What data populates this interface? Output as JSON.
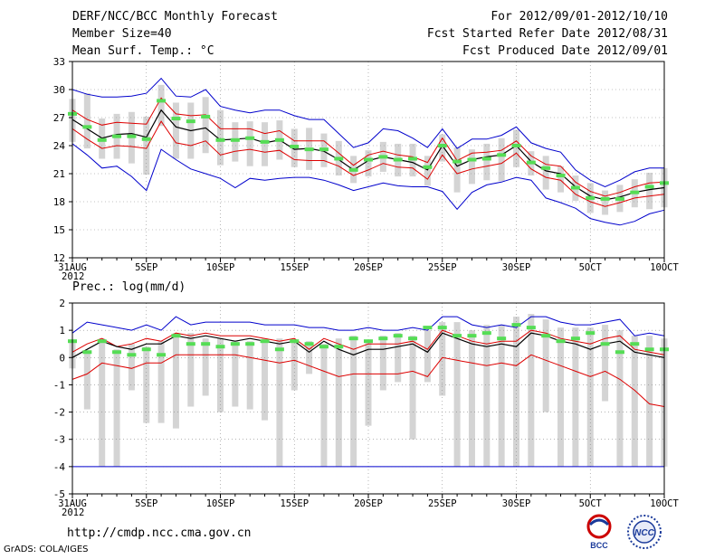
{
  "header": {
    "title": "DERF/NCC/BCC Monthly Forecast",
    "member_size": "Member Size=40",
    "variable": "Mean Surf. Temp.: °C",
    "forecast_period": "For 2012/09/01-2012/10/10",
    "started_refer": "Fcst Started Refer Date 2012/08/31",
    "produced": "Fcst Produced Date 2012/09/01"
  },
  "footer": {
    "url": "http://cmdp.ncc.cma.gov.cn",
    "grads_credit": "GrADS: COLA/IGES",
    "logo_left_text": "BCC",
    "logo_right_text": "NCC"
  },
  "colors": {
    "envelope": "#0000cc",
    "spread": "#dd0000",
    "mean": "#000000",
    "median_marker": "#55dd55",
    "box": "#d4d4d4",
    "grid": "#888888"
  },
  "chart_data": [
    {
      "type": "line",
      "title": "Mean Surf. Temp.: °C",
      "x_tick_labels": [
        "31AUG",
        "5SEP",
        "10SEP",
        "15SEP",
        "20SEP",
        "25SEP",
        "30SEP",
        "5OCT",
        "10OCT"
      ],
      "x_year_label": "2012",
      "x_day_range": [
        0,
        40
      ],
      "ylim": [
        12,
        33
      ],
      "y_ticks": [
        12,
        15,
        18,
        21,
        24,
        27,
        30,
        33
      ],
      "series": [
        {
          "name": "max",
          "values": [
            30.0,
            29.5,
            29.2,
            29.2,
            29.3,
            29.6,
            31.2,
            29.3,
            29.2,
            30.0,
            28.2,
            27.8,
            27.5,
            27.8,
            27.8,
            27.2,
            26.8,
            26.8,
            25.3,
            23.8,
            24.3,
            25.8,
            25.6,
            24.8,
            23.8,
            25.8,
            23.7,
            24.7,
            24.7,
            25.1,
            26.0,
            24.3,
            23.7,
            23.3,
            21.4,
            20.3,
            19.6,
            20.3,
            21.2,
            21.6,
            21.6
          ]
        },
        {
          "name": "upper",
          "values": [
            27.8,
            26.8,
            26.2,
            26.5,
            26.4,
            26.3,
            29.1,
            27.4,
            27.2,
            27.3,
            25.8,
            25.8,
            25.8,
            25.3,
            25.6,
            24.5,
            24.5,
            24.5,
            23.2,
            21.9,
            23.0,
            23.4,
            23.0,
            22.8,
            22.2,
            24.8,
            22.4,
            23.2,
            23.3,
            23.5,
            24.5,
            22.9,
            22.0,
            21.8,
            20.1,
            19.1,
            18.6,
            19.0,
            19.6,
            20.0,
            20.1
          ]
        },
        {
          "name": "mean",
          "values": [
            26.8,
            25.8,
            24.8,
            25.2,
            25.3,
            24.9,
            27.8,
            26.0,
            25.6,
            25.9,
            24.6,
            24.7,
            24.8,
            24.3,
            24.6,
            23.6,
            23.7,
            23.4,
            22.5,
            21.4,
            22.4,
            22.8,
            22.5,
            22.2,
            21.4,
            24.0,
            21.8,
            22.5,
            22.8,
            23.0,
            24.0,
            22.3,
            21.3,
            21.0,
            19.6,
            18.6,
            18.2,
            18.5,
            19.0,
            19.3,
            19.5
          ]
        },
        {
          "name": "lower",
          "values": [
            25.8,
            24.7,
            23.7,
            24.0,
            23.9,
            23.7,
            26.6,
            24.3,
            24.0,
            24.5,
            23.0,
            23.4,
            23.6,
            23.3,
            23.5,
            22.5,
            22.4,
            22.4,
            21.8,
            20.8,
            21.4,
            22.1,
            21.7,
            21.6,
            20.4,
            23.0,
            21.0,
            21.5,
            21.8,
            22.1,
            23.2,
            21.5,
            20.6,
            20.3,
            18.8,
            18.0,
            17.5,
            17.9,
            18.4,
            18.6,
            18.8
          ]
        },
        {
          "name": "min",
          "values": [
            24.2,
            23.0,
            21.6,
            21.8,
            20.7,
            19.2,
            23.6,
            22.5,
            21.5,
            21.0,
            20.5,
            19.5,
            20.5,
            20.3,
            20.5,
            20.6,
            20.6,
            20.3,
            19.8,
            19.2,
            19.6,
            20.0,
            19.7,
            19.6,
            19.6,
            19.1,
            17.2,
            19.0,
            19.8,
            20.1,
            20.6,
            20.3,
            18.4,
            17.9,
            17.3,
            16.2,
            15.8,
            15.5,
            15.9,
            16.7,
            17.1
          ]
        },
        {
          "name": "median",
          "values": [
            27.4,
            26.0,
            24.6,
            25.0,
            25.0,
            24.7,
            28.8,
            26.9,
            26.6,
            27.1,
            24.6,
            24.6,
            24.8,
            24.4,
            24.6,
            23.9,
            23.6,
            23.6,
            22.6,
            21.4,
            22.5,
            22.8,
            22.5,
            22.6,
            21.7,
            24.0,
            22.3,
            22.5,
            22.6,
            23.0,
            24.0,
            22.2,
            21.6,
            20.8,
            19.5,
            18.4,
            18.3,
            18.3,
            19.0,
            19.6,
            20.0
          ]
        }
      ],
      "boxes": {
        "high": [
          29.0,
          29.6,
          26.9,
          27.4,
          27.6,
          27.1,
          30.5,
          28.6,
          28.6,
          29.2,
          27.8,
          26.5,
          26.6,
          26.5,
          26.7,
          25.8,
          25.9,
          25.3,
          24.5,
          22.9,
          23.5,
          24.4,
          24.2,
          24.2,
          22.9,
          25.2,
          23.8,
          23.6,
          24.2,
          24.8,
          25.7,
          23.4,
          22.9,
          21.8,
          20.8,
          20.0,
          19.2,
          19.8,
          20.4,
          21.1,
          21.6
        ],
        "low": [
          24.4,
          23.7,
          22.6,
          22.6,
          22.1,
          20.9,
          26.1,
          22.6,
          22.6,
          23.2,
          21.9,
          22.3,
          21.8,
          21.8,
          22.5,
          21.7,
          21.4,
          21.7,
          20.8,
          20.0,
          20.7,
          21.2,
          20.7,
          20.7,
          19.7,
          22.3,
          19.0,
          19.9,
          20.3,
          20.2,
          21.7,
          20.8,
          19.3,
          19.0,
          18.1,
          16.8,
          16.6,
          16.9,
          17.4,
          17.2,
          17.4
        ]
      }
    },
    {
      "type": "line",
      "title": "Prec.: log(mm/d)",
      "x_tick_labels": [
        "31AUG",
        "5SEP",
        "10SEP",
        "15SEP",
        "20SEP",
        "25SEP",
        "30SEP",
        "5OCT",
        "10OCT"
      ],
      "x_year_label": "2012",
      "x_day_range": [
        0,
        40
      ],
      "ylim": [
        -5,
        2
      ],
      "y_ticks": [
        -5,
        -4,
        -3,
        -2,
        -1,
        0,
        1,
        2
      ],
      "series": [
        {
          "name": "max",
          "values": [
            0.9,
            1.3,
            1.2,
            1.1,
            1.0,
            1.2,
            1.0,
            1.5,
            1.2,
            1.3,
            1.3,
            1.3,
            1.3,
            1.2,
            1.2,
            1.2,
            1.1,
            1.1,
            1.0,
            1.0,
            1.1,
            1.0,
            1.0,
            1.1,
            1.0,
            1.5,
            1.5,
            1.2,
            1.1,
            1.2,
            1.1,
            1.5,
            1.5,
            1.3,
            1.2,
            1.2,
            1.3,
            1.4,
            0.8,
            0.9,
            0.8
          ]
        },
        {
          "name": "upper",
          "values": [
            0.2,
            0.5,
            0.7,
            0.4,
            0.5,
            0.7,
            0.6,
            0.9,
            0.8,
            0.9,
            0.8,
            0.8,
            0.8,
            0.7,
            0.6,
            0.7,
            0.3,
            0.7,
            0.5,
            0.3,
            0.5,
            0.5,
            0.5,
            0.6,
            0.3,
            1.0,
            0.8,
            0.6,
            0.5,
            0.6,
            0.6,
            1.0,
            0.9,
            0.7,
            0.6,
            0.5,
            0.7,
            0.8,
            0.3,
            0.2,
            0.1
          ]
        },
        {
          "name": "mean",
          "values": [
            0.0,
            0.3,
            0.6,
            0.4,
            0.3,
            0.5,
            0.5,
            0.8,
            0.7,
            0.8,
            0.7,
            0.6,
            0.7,
            0.6,
            0.5,
            0.6,
            0.2,
            0.6,
            0.3,
            0.1,
            0.3,
            0.3,
            0.4,
            0.5,
            0.2,
            0.9,
            0.7,
            0.5,
            0.4,
            0.5,
            0.4,
            0.9,
            0.8,
            0.6,
            0.5,
            0.3,
            0.5,
            0.6,
            0.2,
            0.1,
            0.0
          ]
        },
        {
          "name": "lower",
          "values": [
            -0.8,
            -0.6,
            -0.2,
            -0.3,
            -0.4,
            -0.2,
            -0.2,
            0.1,
            0.1,
            0.1,
            0.1,
            0.1,
            0.0,
            -0.1,
            -0.2,
            -0.1,
            -0.3,
            -0.5,
            -0.7,
            -0.6,
            -0.6,
            -0.6,
            -0.6,
            -0.5,
            -0.7,
            0.0,
            -0.1,
            -0.2,
            -0.3,
            -0.2,
            -0.3,
            0.1,
            -0.1,
            -0.3,
            -0.5,
            -0.7,
            -0.5,
            -0.8,
            -1.2,
            -1.7,
            -1.8
          ]
        },
        {
          "name": "min",
          "values": [
            -4,
            -4,
            -4,
            -4,
            -4,
            -4,
            -4,
            -4,
            -4,
            -4,
            -4,
            -4,
            -4,
            -4,
            -4,
            -4,
            -4,
            -4,
            -4,
            -4,
            -4,
            -4,
            -4,
            -4,
            -4,
            -4,
            -4,
            -4,
            -4,
            -4,
            -4,
            -4,
            -4,
            -4,
            -4,
            -4,
            -4,
            -4,
            -4,
            -4,
            -4
          ]
        },
        {
          "name": "median",
          "values": [
            0.6,
            0.2,
            0.6,
            0.2,
            0.1,
            0.3,
            0.1,
            0.8,
            0.5,
            0.5,
            0.4,
            0.5,
            0.5,
            0.6,
            0.3,
            0.6,
            0.5,
            0.4,
            0.4,
            0.7,
            0.6,
            0.7,
            0.8,
            0.7,
            1.1,
            1.1,
            0.8,
            0.8,
            0.9,
            0.7,
            1.2,
            1.1,
            0.8,
            0.6,
            0.7,
            0.9,
            0.5,
            0.2,
            0.5,
            0.3,
            0.3
          ]
        }
      ],
      "boxes": {
        "high": [
          0.6,
          0.2,
          0.7,
          0.3,
          0.5,
          0.4,
          0.6,
          0.9,
          0.9,
          0.7,
          0.7,
          0.6,
          0.6,
          0.7,
          0.7,
          0.6,
          0.6,
          0.5,
          0.7,
          0.8,
          0.6,
          0.8,
          0.9,
          0.8,
          1.0,
          1.3,
          1.3,
          1.0,
          1.2,
          1.2,
          1.5,
          1.6,
          1.4,
          1.1,
          1.1,
          1.1,
          1.2,
          1.0,
          0.8,
          0.8,
          0.7
        ],
        "low": [
          -0.4,
          -1.9,
          -4.0,
          -4.0,
          -1.2,
          -2.4,
          -2.4,
          -2.6,
          -1.8,
          -1.4,
          -2.0,
          -1.8,
          -1.9,
          -2.3,
          -4.0,
          -1.2,
          -0.6,
          -4.0,
          -4.0,
          -4.0,
          -2.5,
          -1.2,
          -0.9,
          -3.0,
          -0.9,
          -1.4,
          -4.0,
          -4.0,
          -4.0,
          -4.0,
          -4.0,
          -4.0,
          -2.0,
          -4.0,
          -4.0,
          -4.0,
          -1.6,
          -4.0,
          -4.0,
          -4.0,
          -4.0
        ]
      }
    }
  ]
}
